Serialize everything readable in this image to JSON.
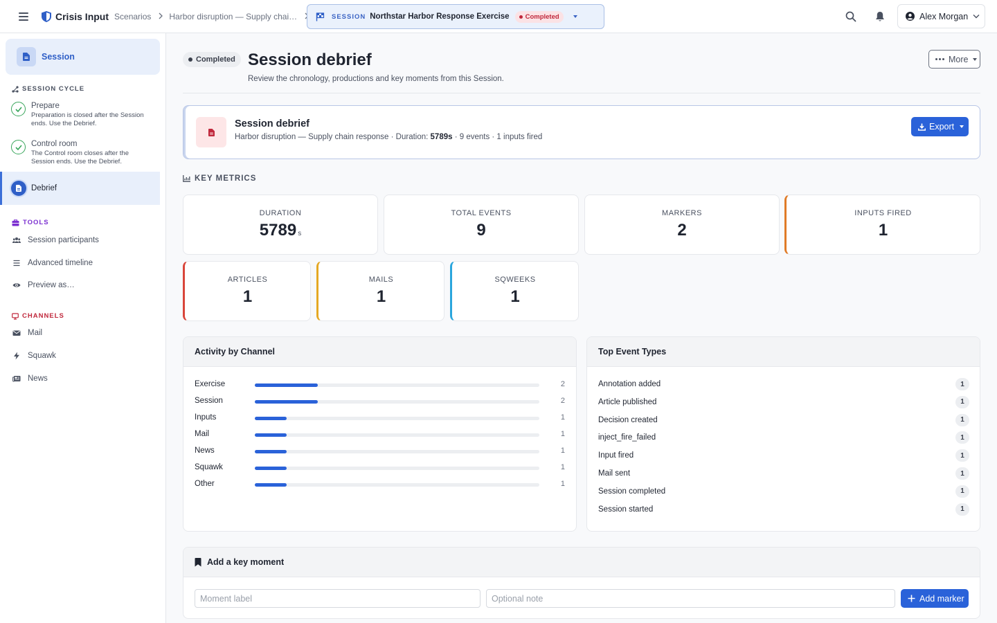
{
  "topbar": {
    "brand": "Crisis Input",
    "crumbs": [
      "Scenarios",
      "Harbor disruption — Supply chai…"
    ],
    "session_tag": "SESSION",
    "session_name": "Northstar Harbor Response Exercise",
    "session_status": "Completed",
    "user_name": "Alex Morgan"
  },
  "sidebar": {
    "session_label": "Session",
    "cycle_heading": "SESSION CYCLE",
    "cycle": [
      {
        "title": "Prepare",
        "desc": "Preparation is closed after the Session ends. Use the Debrief."
      },
      {
        "title": "Control room",
        "desc": "The Control room closes after the Session ends. Use the Debrief."
      }
    ],
    "debrief_label": "Debrief",
    "tools_heading": "TOOLS",
    "tools": [
      "Session participants",
      "Advanced timeline",
      "Preview as…"
    ],
    "channels_heading": "CHANNELS",
    "channels": [
      "Mail",
      "Squawk",
      "News"
    ],
    "colors": {
      "tools": "#7b2fd0",
      "channels": "#c0283c",
      "cycle": "#4a5160",
      "accent": "#2f5fc7"
    }
  },
  "header": {
    "status": "Completed",
    "title": "Session debrief",
    "subtitle": "Review the chronology, productions and key moments from this Session.",
    "more_label": "More"
  },
  "debrief_card": {
    "title": "Session debrief",
    "meta_prefix": "Harbor disruption — Supply chain response · Duration: ",
    "duration": "5789s",
    "meta_suffix": " · 9 events · 1 inputs fired",
    "export_label": "Export"
  },
  "metrics": {
    "heading": "KEY METRICS",
    "duration": {
      "label": "DURATION",
      "value": "5789",
      "unit": "s"
    },
    "total_events": {
      "label": "TOTAL EVENTS",
      "value": "9"
    },
    "markers": {
      "label": "MARKERS",
      "value": "2"
    },
    "inputs_fired": {
      "label": "INPUTS FIRED",
      "value": "1",
      "accent": "#e07b27"
    },
    "articles": {
      "label": "ARTICLES",
      "value": "1",
      "accent": "#d9453a"
    },
    "mails": {
      "label": "MAILS",
      "value": "1",
      "accent": "#e5a823"
    },
    "sqweeks": {
      "label": "SQWEEKS",
      "value": "1",
      "accent": "#2aa6dd"
    }
  },
  "activity": {
    "title": "Activity by Channel",
    "rows": [
      {
        "label": "Exercise",
        "count": 2
      },
      {
        "label": "Session",
        "count": 2
      },
      {
        "label": "Inputs",
        "count": 1
      },
      {
        "label": "Mail",
        "count": 1
      },
      {
        "label": "News",
        "count": 1
      },
      {
        "label": "Squawk",
        "count": 1
      },
      {
        "label": "Other",
        "count": 1
      }
    ],
    "scale_max": 9
  },
  "top_events": {
    "title": "Top Event Types",
    "rows": [
      {
        "label": "Annotation added",
        "count": "1"
      },
      {
        "label": "Article published",
        "count": "1"
      },
      {
        "label": "Decision created",
        "count": "1"
      },
      {
        "label": "inject_fire_failed",
        "count": "1"
      },
      {
        "label": "Input fired",
        "count": "1"
      },
      {
        "label": "Mail sent",
        "count": "1"
      },
      {
        "label": "Session completed",
        "count": "1"
      },
      {
        "label": "Session started",
        "count": "1"
      }
    ]
  },
  "key_moment": {
    "title": "Add a key moment",
    "label_placeholder": "Moment label",
    "note_placeholder": "Optional note",
    "add_label": "Add marker"
  }
}
